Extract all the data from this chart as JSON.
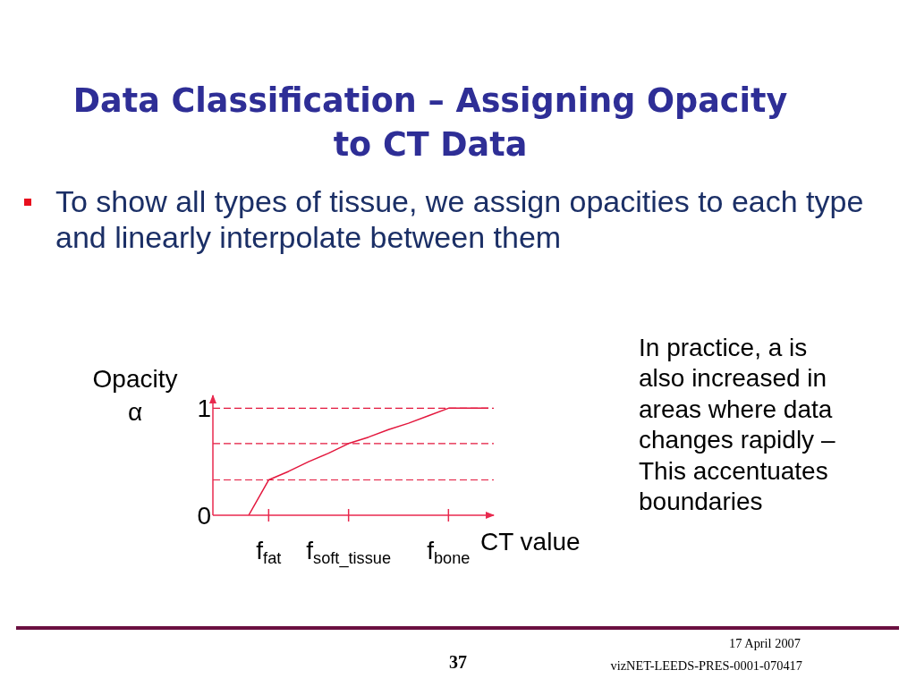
{
  "chart_data": {
    "type": "line",
    "title": "Data Classification – Assigning Opacity to CT Data",
    "subtitle": "To show all types of tissue, we assign opacities to each type and linearly interpolate between them",
    "xlabel": "CT value",
    "ylabel": "Opacity\nα",
    "categories": [
      null,
      "f$_{fat}$",
      null,
      null,
      null,
      "f$_{soft_tissue}$",
      null,
      null,
      null,
      null,
      "f$_{bone}$",
      null,
      null
    ],
    "values": [
      0,
      0.33,
      0.41,
      0.5,
      0.58,
      0.67,
      0.73,
      0.8,
      0.86,
      0.93,
      1,
      1,
      1
    ],
    "color": "#e3173d",
    "ylim": [
      0,
      1.12
    ],
    "yticks": [
      0,
      1
    ],
    "ref_lines": [
      {
        "axis": "y",
        "value": 0.33,
        "line_style": "dashed"
      },
      {
        "axis": "y",
        "value": 0.67,
        "line_style": "dashed"
      },
      {
        "axis": "y",
        "value": 1,
        "line_style": "dashed"
      }
    ],
    "grid": false,
    "legend": false,
    "marker": "none",
    "line_style": "solid",
    "annotations": [
      "In practice, a is also increased in areas where data changes rapidly – This accentuates boundaries",
      "17 April 2007",
      "37",
      "vizNET-LEEDS-PRES-0001-070417"
    ]
  }
}
